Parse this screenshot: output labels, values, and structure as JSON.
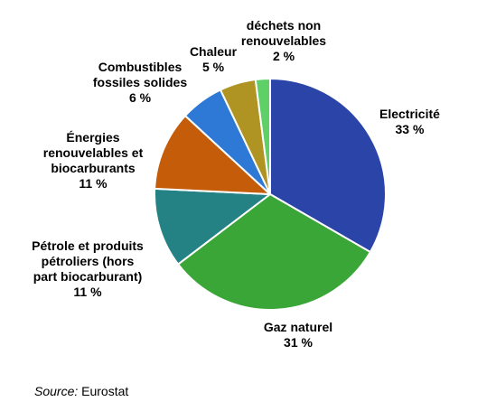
{
  "chart_data": {
    "type": "pie",
    "slices": [
      {
        "label_lines": [
          "Electricité"
        ],
        "value": 33,
        "value_label": "33 %",
        "color": "#2a44a8"
      },
      {
        "label_lines": [
          "Gaz naturel"
        ],
        "value": 31,
        "value_label": "31 %",
        "color": "#3aa637"
      },
      {
        "label_lines": [
          "Pétrole et produits",
          "pétroliers (hors",
          "part biocarburant)"
        ],
        "value": 11,
        "value_label": "11 %",
        "color": "#258284"
      },
      {
        "label_lines": [
          "Énergies",
          "renouvelables et",
          "biocarburants"
        ],
        "value": 11,
        "value_label": "11 %",
        "color": "#c45c0a"
      },
      {
        "label_lines": [
          "Combustibles",
          "fossiles solides"
        ],
        "value": 6,
        "value_label": "6 %",
        "color": "#2f79d6"
      },
      {
        "label_lines": [
          "Chaleur"
        ],
        "value": 5,
        "value_label": "5 %",
        "color": "#b09423"
      },
      {
        "label_lines": [
          "déchets non",
          "renouvelables"
        ],
        "value": 2,
        "value_label": "2 %",
        "color": "#5fcf68"
      }
    ],
    "start_angle_deg": 0,
    "direction": "clockwise"
  },
  "source": {
    "prefix": "Source:",
    "text": " Eurostat"
  }
}
